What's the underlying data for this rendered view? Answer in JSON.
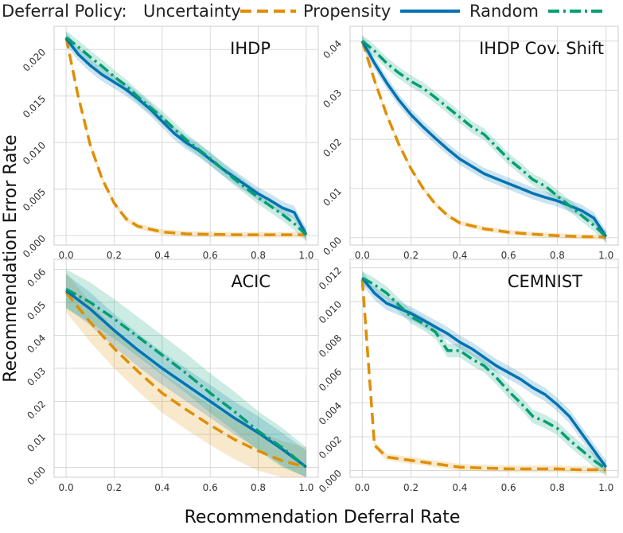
{
  "legend": {
    "title": "Deferral Policy:",
    "items": [
      {
        "label": "Uncertainty",
        "color": "#de8f05",
        "dash": "dashed"
      },
      {
        "label": "Propensity",
        "color": "#0173b2",
        "dash": "solid"
      },
      {
        "label": "Random",
        "color": "#029e73",
        "dash": "dashdot"
      }
    ]
  },
  "xlabel": "Recommendation Deferral Rate",
  "ylabel": "Recommendation Error Rate",
  "chart_data": [
    {
      "type": "line",
      "title": "IHDP",
      "xlim": [
        -0.05,
        1.05
      ],
      "ylim": [
        -0.001,
        0.0225
      ],
      "xticks": [
        "0.0",
        "0.2",
        "0.4",
        "0.6",
        "0.8",
        "1.0"
      ],
      "yticks": [
        "0.000",
        "0.005",
        "0.010",
        "0.015",
        "0.020"
      ],
      "grid": true,
      "series": [
        {
          "name": "Uncertainty",
          "x": [
            0,
            0.05,
            0.1,
            0.15,
            0.2,
            0.25,
            0.3,
            0.4,
            0.5,
            0.6,
            0.7,
            0.8,
            0.9,
            1.0
          ],
          "y": [
            0.0213,
            0.015,
            0.0098,
            0.0061,
            0.0035,
            0.0018,
            0.001,
            0.0004,
            0.0002,
            0.00015,
            0.0001,
            0.0001,
            0.0001,
            0.0001
          ],
          "band": 0.0003
        },
        {
          "name": "Propensity",
          "x": [
            0,
            0.05,
            0.1,
            0.15,
            0.2,
            0.25,
            0.3,
            0.35,
            0.4,
            0.45,
            0.5,
            0.55,
            0.6,
            0.65,
            0.7,
            0.75,
            0.8,
            0.85,
            0.9,
            0.95,
            1.0
          ],
          "y": [
            0.0212,
            0.0195,
            0.0183,
            0.0173,
            0.0165,
            0.0157,
            0.0147,
            0.0136,
            0.0123,
            0.011,
            0.01,
            0.0092,
            0.0082,
            0.0072,
            0.0063,
            0.0054,
            0.0045,
            0.0038,
            0.003,
            0.0025,
            0.0001
          ],
          "band": 0.0007
        },
        {
          "name": "Random",
          "x": [
            0,
            0.05,
            0.1,
            0.15,
            0.2,
            0.25,
            0.3,
            0.35,
            0.4,
            0.45,
            0.5,
            0.55,
            0.6,
            0.65,
            0.7,
            0.75,
            0.8,
            0.85,
            0.9,
            0.95,
            1.0
          ],
          "y": [
            0.0213,
            0.0203,
            0.0192,
            0.0182,
            0.0171,
            0.0161,
            0.0149,
            0.0138,
            0.0127,
            0.0115,
            0.0103,
            0.0093,
            0.0083,
            0.0072,
            0.0061,
            0.0051,
            0.0041,
            0.0032,
            0.0023,
            0.0013,
            0.0001
          ],
          "band": 0.0007
        }
      ]
    },
    {
      "type": "line",
      "title": "IHDP Cov. Shift",
      "xlim": [
        -0.05,
        1.05
      ],
      "ylim": [
        -0.0015,
        0.043
      ],
      "xticks": [
        "0.0",
        "0.2",
        "0.4",
        "0.6",
        "0.8",
        "1.0"
      ],
      "yticks": [
        "0.00",
        "0.01",
        "0.02",
        "0.03",
        "0.04"
      ],
      "grid": true,
      "series": [
        {
          "name": "Uncertainty",
          "x": [
            0,
            0.05,
            0.1,
            0.15,
            0.2,
            0.25,
            0.3,
            0.35,
            0.4,
            0.5,
            0.6,
            0.7,
            0.8,
            0.9,
            1.0
          ],
          "y": [
            0.04,
            0.032,
            0.025,
            0.019,
            0.014,
            0.01,
            0.0068,
            0.0045,
            0.003,
            0.0018,
            0.0011,
            0.0007,
            0.0004,
            0.0002,
            0.0001
          ],
          "band": 0.0005
        },
        {
          "name": "Propensity",
          "x": [
            0,
            0.05,
            0.1,
            0.15,
            0.2,
            0.25,
            0.3,
            0.35,
            0.4,
            0.45,
            0.5,
            0.55,
            0.6,
            0.65,
            0.7,
            0.75,
            0.8,
            0.85,
            0.9,
            0.95,
            1.0
          ],
          "y": [
            0.04,
            0.0355,
            0.0315,
            0.028,
            0.025,
            0.0225,
            0.0202,
            0.018,
            0.016,
            0.0145,
            0.013,
            0.012,
            0.011,
            0.01,
            0.009,
            0.0082,
            0.0075,
            0.0065,
            0.0055,
            0.004,
            0.0002
          ],
          "band": 0.0012
        },
        {
          "name": "Random",
          "x": [
            0,
            0.05,
            0.1,
            0.15,
            0.2,
            0.25,
            0.3,
            0.35,
            0.4,
            0.45,
            0.5,
            0.55,
            0.6,
            0.65,
            0.7,
            0.75,
            0.8,
            0.85,
            0.9,
            0.95,
            1.0
          ],
          "y": [
            0.04,
            0.038,
            0.0355,
            0.0335,
            0.0318,
            0.0304,
            0.0285,
            0.0265,
            0.0245,
            0.0225,
            0.021,
            0.0185,
            0.016,
            0.014,
            0.0118,
            0.0105,
            0.0085,
            0.0065,
            0.0045,
            0.0025,
            0.0002
          ],
          "band": 0.0012
        }
      ]
    },
    {
      "type": "line",
      "title": "ACIC",
      "xlim": [
        -0.05,
        1.05
      ],
      "ylim": [
        -0.003,
        0.063
      ],
      "xticks": [
        "0.0",
        "0.2",
        "0.4",
        "0.6",
        "0.8",
        "1.0"
      ],
      "yticks": [
        "0.00",
        "0.01",
        "0.02",
        "0.03",
        "0.04",
        "0.05",
        "0.06"
      ],
      "grid": true,
      "series": [
        {
          "name": "Uncertainty",
          "x": [
            0,
            0.1,
            0.2,
            0.3,
            0.4,
            0.5,
            0.6,
            0.7,
            0.8,
            0.9,
            1.0
          ],
          "y": [
            0.053,
            0.044,
            0.036,
            0.029,
            0.0225,
            0.0175,
            0.0128,
            0.0085,
            0.005,
            0.002,
            0.0001
          ],
          "band": 0.006
        },
        {
          "name": "Propensity",
          "x": [
            0,
            0.1,
            0.2,
            0.3,
            0.4,
            0.5,
            0.6,
            0.7,
            0.8,
            0.9,
            1.0
          ],
          "y": [
            0.0535,
            0.048,
            0.0415,
            0.0355,
            0.03,
            0.025,
            0.02,
            0.015,
            0.0105,
            0.0055,
            0.0001
          ],
          "band": 0.005
        },
        {
          "name": "Random",
          "x": [
            0,
            0.1,
            0.2,
            0.3,
            0.4,
            0.5,
            0.6,
            0.7,
            0.8,
            0.9,
            1.0
          ],
          "y": [
            0.054,
            0.05,
            0.045,
            0.0395,
            0.034,
            0.0285,
            0.0225,
            0.017,
            0.011,
            0.006,
            0.0001
          ],
          "band": 0.006
        }
      ]
    },
    {
      "type": "line",
      "title": "CEMNIST",
      "xlim": [
        -0.05,
        1.05
      ],
      "ylim": [
        -0.0004,
        0.0125
      ],
      "xticks": [
        "0.0",
        "0.2",
        "0.4",
        "0.6",
        "0.8",
        "1.0"
      ],
      "yticks": [
        "0.000",
        "0.002",
        "0.004",
        "0.006",
        "0.008",
        "0.010",
        "0.012"
      ],
      "grid": true,
      "series": [
        {
          "name": "Uncertainty",
          "x": [
            0,
            0.05,
            0.1,
            0.2,
            0.3,
            0.4,
            0.5,
            0.6,
            0.7,
            0.8,
            0.9,
            1.0
          ],
          "y": [
            0.0113,
            0.0015,
            0.0008,
            0.0006,
            0.0004,
            0.0002,
            0.00015,
            0.0001,
            0.0001,
            0.0001,
            5e-05,
            5e-05
          ],
          "band": 0.0002
        },
        {
          "name": "Propensity",
          "x": [
            0,
            0.05,
            0.1,
            0.15,
            0.2,
            0.25,
            0.3,
            0.35,
            0.4,
            0.45,
            0.5,
            0.55,
            0.6,
            0.65,
            0.7,
            0.75,
            0.8,
            0.85,
            0.9,
            0.95,
            1.0
          ],
          "y": [
            0.0114,
            0.0105,
            0.0099,
            0.0096,
            0.0093,
            0.0089,
            0.0085,
            0.0081,
            0.0076,
            0.0072,
            0.0067,
            0.0062,
            0.0058,
            0.0054,
            0.0049,
            0.0045,
            0.0039,
            0.0032,
            0.0022,
            0.0012,
            0.0002
          ],
          "band": 0.0004
        },
        {
          "name": "Random",
          "x": [
            0,
            0.05,
            0.1,
            0.15,
            0.2,
            0.25,
            0.3,
            0.35,
            0.4,
            0.45,
            0.5,
            0.55,
            0.6,
            0.65,
            0.7,
            0.75,
            0.8,
            0.85,
            0.9,
            0.95,
            1.0
          ],
          "y": [
            0.0114,
            0.011,
            0.0105,
            0.0098,
            0.0091,
            0.0087,
            0.0082,
            0.0071,
            0.0071,
            0.0066,
            0.0062,
            0.0055,
            0.0047,
            0.004,
            0.0032,
            0.0029,
            0.0025,
            0.0018,
            0.0012,
            0.0006,
            0.0001
          ],
          "band": 0.0004
        }
      ]
    }
  ]
}
